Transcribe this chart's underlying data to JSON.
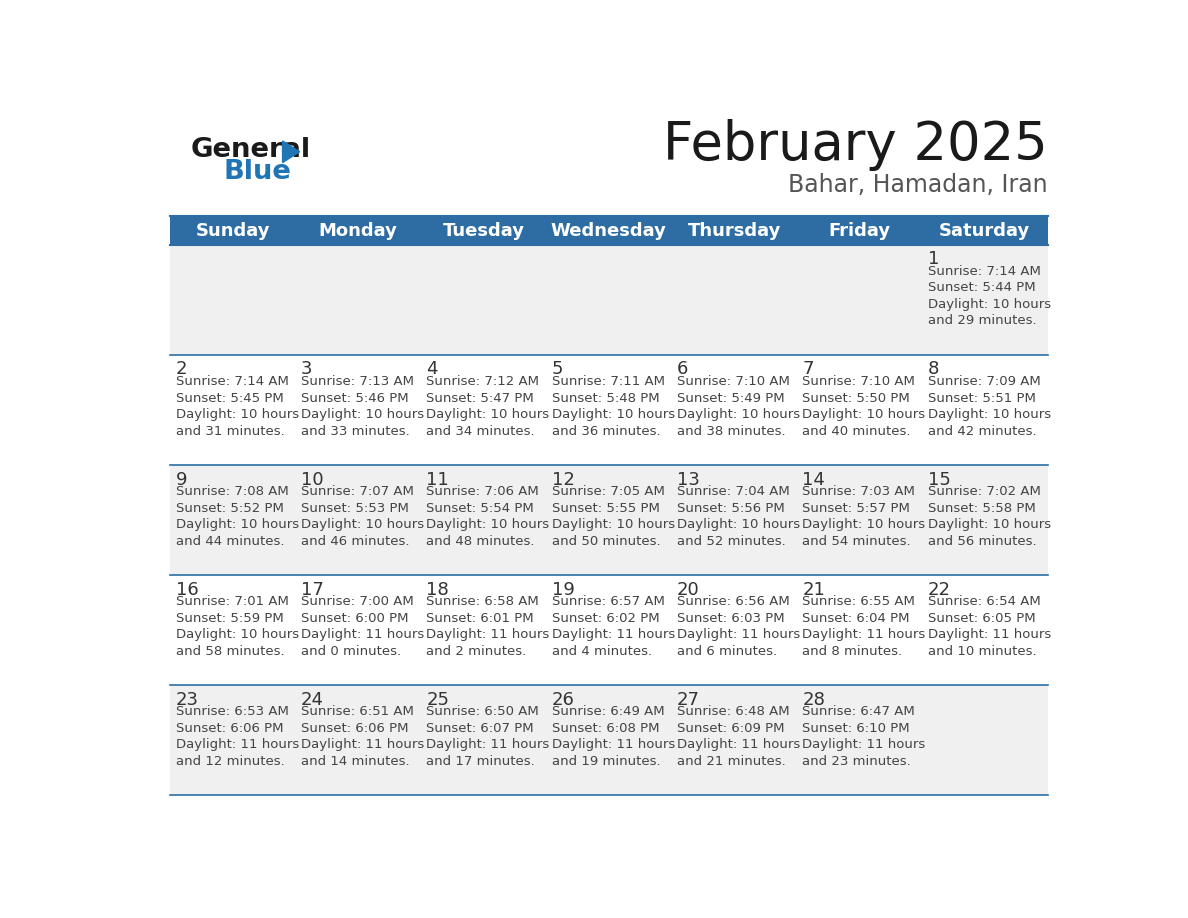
{
  "title": "February 2025",
  "subtitle": "Bahar, Hamadan, Iran",
  "header_bg": "#2E6DA4",
  "header_text_color": "#FFFFFF",
  "cell_bg_odd": "#F0F0F0",
  "cell_bg_even": "#FFFFFF",
  "cell_border_color": "#2E6DA4",
  "day_number_color": "#333333",
  "info_text_color": "#444444",
  "days_of_week": [
    "Sunday",
    "Monday",
    "Tuesday",
    "Wednesday",
    "Thursday",
    "Friday",
    "Saturday"
  ],
  "weeks": [
    [
      {
        "day": null,
        "sunrise": null,
        "sunset": null,
        "daylight": null
      },
      {
        "day": null,
        "sunrise": null,
        "sunset": null,
        "daylight": null
      },
      {
        "day": null,
        "sunrise": null,
        "sunset": null,
        "daylight": null
      },
      {
        "day": null,
        "sunrise": null,
        "sunset": null,
        "daylight": null
      },
      {
        "day": null,
        "sunrise": null,
        "sunset": null,
        "daylight": null
      },
      {
        "day": null,
        "sunrise": null,
        "sunset": null,
        "daylight": null
      },
      {
        "day": 1,
        "sunrise": "7:14 AM",
        "sunset": "5:44 PM",
        "daylight": "10 hours\nand 29 minutes."
      }
    ],
    [
      {
        "day": 2,
        "sunrise": "7:14 AM",
        "sunset": "5:45 PM",
        "daylight": "10 hours\nand 31 minutes."
      },
      {
        "day": 3,
        "sunrise": "7:13 AM",
        "sunset": "5:46 PM",
        "daylight": "10 hours\nand 33 minutes."
      },
      {
        "day": 4,
        "sunrise": "7:12 AM",
        "sunset": "5:47 PM",
        "daylight": "10 hours\nand 34 minutes."
      },
      {
        "day": 5,
        "sunrise": "7:11 AM",
        "sunset": "5:48 PM",
        "daylight": "10 hours\nand 36 minutes."
      },
      {
        "day": 6,
        "sunrise": "7:10 AM",
        "sunset": "5:49 PM",
        "daylight": "10 hours\nand 38 minutes."
      },
      {
        "day": 7,
        "sunrise": "7:10 AM",
        "sunset": "5:50 PM",
        "daylight": "10 hours\nand 40 minutes."
      },
      {
        "day": 8,
        "sunrise": "7:09 AM",
        "sunset": "5:51 PM",
        "daylight": "10 hours\nand 42 minutes."
      }
    ],
    [
      {
        "day": 9,
        "sunrise": "7:08 AM",
        "sunset": "5:52 PM",
        "daylight": "10 hours\nand 44 minutes."
      },
      {
        "day": 10,
        "sunrise": "7:07 AM",
        "sunset": "5:53 PM",
        "daylight": "10 hours\nand 46 minutes."
      },
      {
        "day": 11,
        "sunrise": "7:06 AM",
        "sunset": "5:54 PM",
        "daylight": "10 hours\nand 48 minutes."
      },
      {
        "day": 12,
        "sunrise": "7:05 AM",
        "sunset": "5:55 PM",
        "daylight": "10 hours\nand 50 minutes."
      },
      {
        "day": 13,
        "sunrise": "7:04 AM",
        "sunset": "5:56 PM",
        "daylight": "10 hours\nand 52 minutes."
      },
      {
        "day": 14,
        "sunrise": "7:03 AM",
        "sunset": "5:57 PM",
        "daylight": "10 hours\nand 54 minutes."
      },
      {
        "day": 15,
        "sunrise": "7:02 AM",
        "sunset": "5:58 PM",
        "daylight": "10 hours\nand 56 minutes."
      }
    ],
    [
      {
        "day": 16,
        "sunrise": "7:01 AM",
        "sunset": "5:59 PM",
        "daylight": "10 hours\nand 58 minutes."
      },
      {
        "day": 17,
        "sunrise": "7:00 AM",
        "sunset": "6:00 PM",
        "daylight": "11 hours\nand 0 minutes."
      },
      {
        "day": 18,
        "sunrise": "6:58 AM",
        "sunset": "6:01 PM",
        "daylight": "11 hours\nand 2 minutes."
      },
      {
        "day": 19,
        "sunrise": "6:57 AM",
        "sunset": "6:02 PM",
        "daylight": "11 hours\nand 4 minutes."
      },
      {
        "day": 20,
        "sunrise": "6:56 AM",
        "sunset": "6:03 PM",
        "daylight": "11 hours\nand 6 minutes."
      },
      {
        "day": 21,
        "sunrise": "6:55 AM",
        "sunset": "6:04 PM",
        "daylight": "11 hours\nand 8 minutes."
      },
      {
        "day": 22,
        "sunrise": "6:54 AM",
        "sunset": "6:05 PM",
        "daylight": "11 hours\nand 10 minutes."
      }
    ],
    [
      {
        "day": 23,
        "sunrise": "6:53 AM",
        "sunset": "6:06 PM",
        "daylight": "11 hours\nand 12 minutes."
      },
      {
        "day": 24,
        "sunrise": "6:51 AM",
        "sunset": "6:06 PM",
        "daylight": "11 hours\nand 14 minutes."
      },
      {
        "day": 25,
        "sunrise": "6:50 AM",
        "sunset": "6:07 PM",
        "daylight": "11 hours\nand 17 minutes."
      },
      {
        "day": 26,
        "sunrise": "6:49 AM",
        "sunset": "6:08 PM",
        "daylight": "11 hours\nand 19 minutes."
      },
      {
        "day": 27,
        "sunrise": "6:48 AM",
        "sunset": "6:09 PM",
        "daylight": "11 hours\nand 21 minutes."
      },
      {
        "day": 28,
        "sunrise": "6:47 AM",
        "sunset": "6:10 PM",
        "daylight": "11 hours\nand 23 minutes."
      },
      {
        "day": null,
        "sunrise": null,
        "sunset": null,
        "daylight": null
      }
    ]
  ],
  "logo_general_color": "#1a1a1a",
  "logo_blue_color": "#2175B5",
  "logo_triangle_color": "#2175B5",
  "title_fontsize": 38,
  "subtitle_fontsize": 17,
  "header_fontsize": 13,
  "day_num_fontsize": 13,
  "cell_text_fontsize": 9.5
}
